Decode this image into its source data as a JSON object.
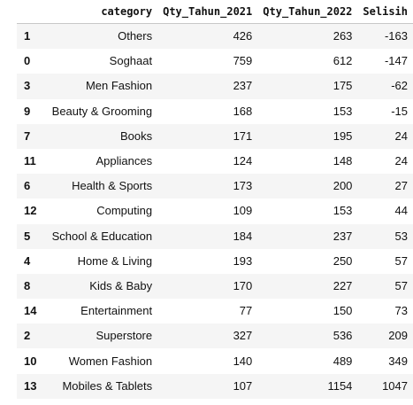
{
  "table": {
    "columns": {
      "index": "",
      "category": "category",
      "qty_2021": "Qty_Tahun_2021",
      "qty_2022": "Qty_Tahun_2022",
      "selisih": "Selisih"
    },
    "rows": [
      {
        "index": "1",
        "category": "Others",
        "qty_2021": "426",
        "qty_2022": "263",
        "selisih": "-163"
      },
      {
        "index": "0",
        "category": "Soghaat",
        "qty_2021": "759",
        "qty_2022": "612",
        "selisih": "-147"
      },
      {
        "index": "3",
        "category": "Men Fashion",
        "qty_2021": "237",
        "qty_2022": "175",
        "selisih": "-62"
      },
      {
        "index": "9",
        "category": "Beauty & Grooming",
        "qty_2021": "168",
        "qty_2022": "153",
        "selisih": "-15"
      },
      {
        "index": "7",
        "category": "Books",
        "qty_2021": "171",
        "qty_2022": "195",
        "selisih": "24"
      },
      {
        "index": "11",
        "category": "Appliances",
        "qty_2021": "124",
        "qty_2022": "148",
        "selisih": "24"
      },
      {
        "index": "6",
        "category": "Health & Sports",
        "qty_2021": "173",
        "qty_2022": "200",
        "selisih": "27"
      },
      {
        "index": "12",
        "category": "Computing",
        "qty_2021": "109",
        "qty_2022": "153",
        "selisih": "44"
      },
      {
        "index": "5",
        "category": "School & Education",
        "qty_2021": "184",
        "qty_2022": "237",
        "selisih": "53"
      },
      {
        "index": "4",
        "category": "Home & Living",
        "qty_2021": "193",
        "qty_2022": "250",
        "selisih": "57"
      },
      {
        "index": "8",
        "category": "Kids & Baby",
        "qty_2021": "170",
        "qty_2022": "227",
        "selisih": "57"
      },
      {
        "index": "14",
        "category": "Entertainment",
        "qty_2021": "77",
        "qty_2022": "150",
        "selisih": "73"
      },
      {
        "index": "2",
        "category": "Superstore",
        "qty_2021": "327",
        "qty_2022": "536",
        "selisih": "209"
      },
      {
        "index": "10",
        "category": "Women Fashion",
        "qty_2021": "140",
        "qty_2022": "489",
        "selisih": "349"
      },
      {
        "index": "13",
        "category": "Mobiles & Tablets",
        "qty_2021": "107",
        "qty_2022": "1154",
        "selisih": "1047"
      }
    ]
  }
}
